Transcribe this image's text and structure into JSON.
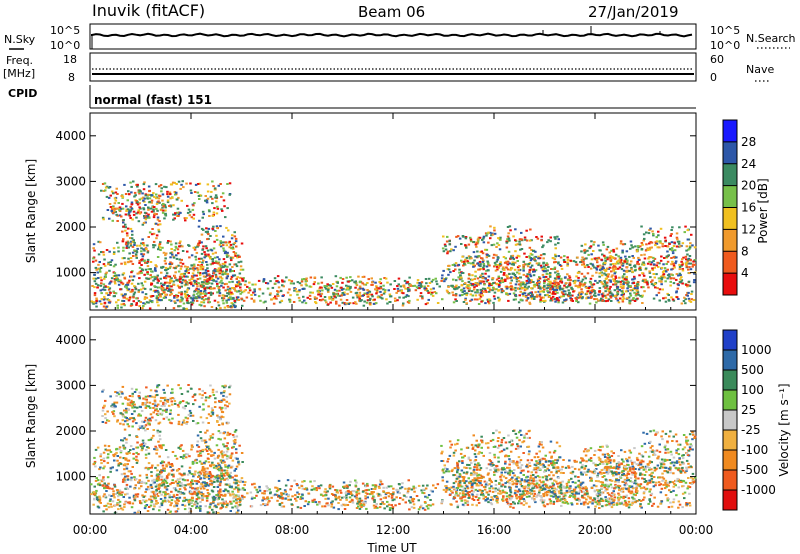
{
  "header": {
    "station": "Inuvik (fitACF)",
    "beam": "Beam 06",
    "date": "27/Jan/2019"
  },
  "top_panels": {
    "nsky_label": "N.Sky",
    "nsky_ticks": [
      "10^5",
      "10^0"
    ],
    "nsearch_label": "N.Search",
    "nsearch_ticks": [
      "10^5",
      "10^0"
    ],
    "freq_label_1": "Freq.",
    "freq_label_2": "[MHz]",
    "freq_ticks": [
      "18",
      "8"
    ],
    "nave_label": "Nave",
    "nave_ticks": [
      "60",
      "0"
    ],
    "cpid_label": "CPID",
    "cpid_value": "normal (fast) 151"
  },
  "chart_data": [
    {
      "type": "heatmap",
      "name": "power",
      "ylabel": "Slant Range [km]",
      "yticks": [
        "1000",
        "2000",
        "3000",
        "4000"
      ],
      "ylim": [
        180,
        4500
      ],
      "colorbar_label": "Power [dB]",
      "colorbar_ticks": [
        "4",
        "8",
        "12",
        "16",
        "20",
        "24",
        "28"
      ],
      "colorbar_colors": [
        "#1919ff",
        "#2d57a8",
        "#3b8a61",
        "#77c04a",
        "#f0c020",
        "#f09a2d",
        "#ef5a1e",
        "#e80d0d"
      ]
    },
    {
      "type": "heatmap",
      "name": "velocity",
      "ylabel": "Slant Range [km]",
      "yticks": [
        "1000",
        "2000",
        "3000",
        "4000"
      ],
      "ylim": [
        180,
        4500
      ],
      "colorbar_label": "Velocity [m s⁻¹]",
      "colorbar_ticks": [
        "1000",
        "500",
        "100",
        "25",
        "-25",
        "-100",
        "-500",
        "-1000"
      ],
      "colorbar_colors": [
        "#2040c8",
        "#2e6aa8",
        "#3a8a5a",
        "#6ec040",
        "#c8c8c8",
        "#f0b040",
        "#f08a20",
        "#ef5a1e",
        "#e00e0e"
      ]
    }
  ],
  "xaxis": {
    "label": "Time UT",
    "ticks": [
      "00:00",
      "04:00",
      "08:00",
      "12:00",
      "16:00",
      "20:00",
      "00:00"
    ]
  }
}
